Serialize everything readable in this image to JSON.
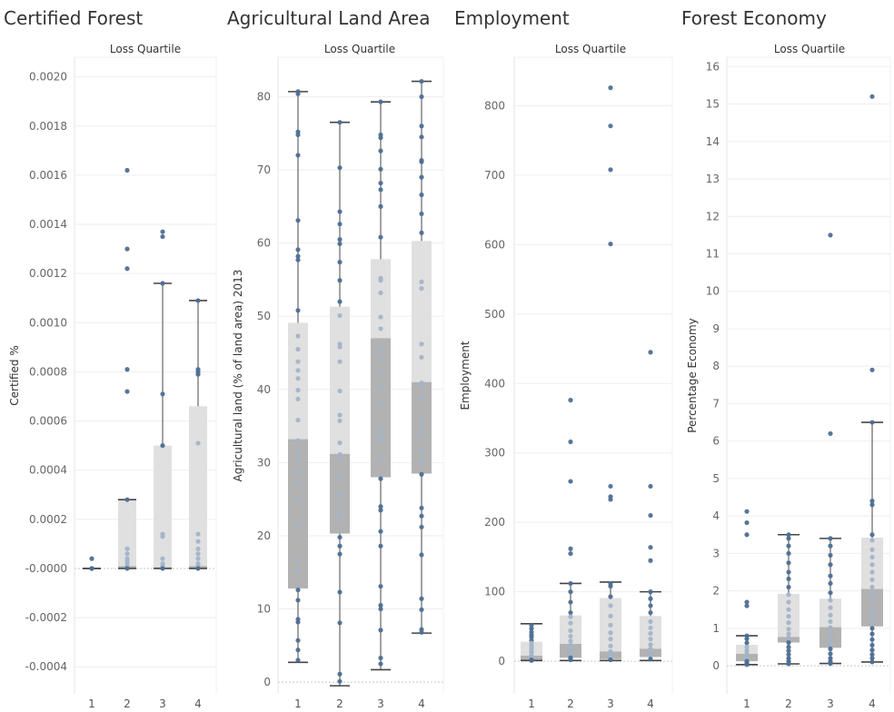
{
  "chart_data": [
    {
      "type": "box",
      "title": "Certified Forest",
      "column_header": "Loss Quartile",
      "ylabel": "Certified %",
      "categories": [
        "1",
        "2",
        "3",
        "4"
      ],
      "ylim": [
        -0.00051,
        0.00208
      ],
      "yticks": [
        "0.0020",
        "0.0018",
        "0.0016",
        "0.0014",
        "0.0012",
        "0.0010",
        "0.0008",
        "0.0006",
        "0.0004",
        "0.0002",
        "-0.0000",
        "-0.0002",
        "-0.0004"
      ],
      "ytick_values": [
        0.002,
        0.0018,
        0.0016,
        0.0014,
        0.0012,
        0.001,
        0.0008,
        0.0006,
        0.0004,
        0.0002,
        0.0,
        -0.0002,
        -0.0004
      ],
      "boxes": [
        {
          "category": "1",
          "min": 0,
          "q1": 0,
          "median": 0,
          "q3": 0,
          "max": 0
        },
        {
          "category": "2",
          "min": 0,
          "q1": 0,
          "median": 1e-05,
          "q3": 0.00028,
          "max": 0.00028
        },
        {
          "category": "3",
          "min": 0,
          "q1": 0,
          "median": 5e-06,
          "q3": 0.0005,
          "max": 0.00116
        },
        {
          "category": "4",
          "min": 0,
          "q1": 0,
          "median": 1e-05,
          "q3": 0.00066,
          "max": 0.00109
        }
      ],
      "points": [
        {
          "category": "1",
          "values": [
            4e-05,
            0,
            0,
            0,
            0
          ]
        },
        {
          "category": "2",
          "values": [
            0.00162,
            0.0013,
            0.00122,
            0.00081,
            0.00072,
            0.00028,
            8e-05,
            6e-05,
            4e-05,
            3e-05,
            2e-05,
            1e-05,
            0
          ]
        },
        {
          "category": "3",
          "values": [
            0.00137,
            0.00135,
            0.00116,
            0.00071,
            0.0005,
            0.00014,
            0.00013,
            4e-05,
            2e-05,
            1e-05,
            0
          ]
        },
        {
          "category": "4",
          "values": [
            0.00109,
            0.00081,
            0.0008,
            0.00079,
            0.00051,
            0.00014,
            0.00011,
            8e-05,
            6e-05,
            4e-05,
            2e-05,
            1e-05,
            0
          ]
        }
      ]
    },
    {
      "type": "box",
      "title": "Agricultural Land Area",
      "column_header": "Loss Quartile",
      "ylabel": "Agricultural land (% of land area) 2013",
      "categories": [
        "1",
        "2",
        "3",
        "4"
      ],
      "ylim": [
        -1.6,
        85.4
      ],
      "yticks": [
        "80",
        "70",
        "60",
        "50",
        "40",
        "30",
        "20",
        "10",
        "0"
      ],
      "ytick_values": [
        80,
        70,
        60,
        50,
        40,
        30,
        20,
        10,
        0
      ],
      "boxes": [
        {
          "category": "1",
          "min": 2.7,
          "q1": 12.8,
          "median": 33.2,
          "q3": 49.1,
          "max": 80.7
        },
        {
          "category": "2",
          "min": -0.5,
          "q1": 20.3,
          "median": 31.2,
          "q3": 51.3,
          "max": 76.5
        },
        {
          "category": "3",
          "min": 1.7,
          "q1": 28.0,
          "median": 47.0,
          "q3": 57.8,
          "max": 79.3
        },
        {
          "category": "4",
          "min": 6.7,
          "q1": 28.5,
          "median": 41.0,
          "q3": 60.3,
          "max": 82.1
        }
      ],
      "points": [
        {
          "category": "1",
          "values": [
            80.7,
            80.4,
            75.2,
            74.8,
            72.0,
            63.1,
            59.1,
            58.2,
            57.7,
            50.8,
            47.3,
            45.5,
            43.8,
            42.6,
            41.5,
            39.9,
            38.7,
            35.8,
            33.0,
            31.5,
            30.1,
            28.6,
            27.2,
            25.2,
            21.3,
            16.7,
            15.2,
            12.6,
            11.2,
            8.6,
            8.2,
            5.7,
            4.4,
            3.0
          ]
        },
        {
          "category": "2",
          "values": [
            76.5,
            70.3,
            64.3,
            62.6,
            60.5,
            59.9,
            57.4,
            54.9,
            52.0,
            50.1,
            46.2,
            45.8,
            43.8,
            39.8,
            36.5,
            35.7,
            32.7,
            31.1,
            30.3,
            28.2,
            25.6,
            24.6,
            23.2,
            22.5,
            19.8,
            18.6,
            17.5,
            12.3,
            8.1,
            1.1,
            0.1
          ]
        },
        {
          "category": "3",
          "values": [
            79.3,
            74.8,
            74.4,
            72.6,
            70.1,
            68.2,
            67.3,
            65.0,
            60.8,
            55.2,
            54.9,
            53.2,
            49.9,
            48.3,
            45.6,
            44.3,
            42.3,
            40.3,
            38.1,
            34.6,
            33.7,
            32.9,
            30.6,
            27.8,
            24.0,
            23.5,
            20.6,
            18.6,
            13.1,
            10.5,
            10.0,
            7.1,
            3.3,
            2.5
          ]
        },
        {
          "category": "4",
          "values": [
            82.1,
            80.0,
            76.0,
            74.5,
            71.3,
            71.1,
            69.0,
            66.6,
            64.0,
            61.4,
            54.7,
            53.8,
            46.2,
            44.4,
            40.9,
            40.5,
            38.7,
            35.9,
            34.6,
            33.6,
            31.6,
            31.4,
            30.0,
            28.4,
            23.8,
            22.7,
            21.2,
            17.4,
            11.4,
            9.9,
            7.2,
            6.8
          ]
        }
      ]
    },
    {
      "type": "box",
      "title": "Employment",
      "column_header": "Loss Quartile",
      "ylabel": "Employment",
      "categories": [
        "1",
        "2",
        "3",
        "4"
      ],
      "ylim": [
        -47,
        870
      ],
      "yticks": [
        "800",
        "700",
        "600",
        "500",
        "400",
        "300",
        "200",
        "100",
        "0"
      ],
      "ytick_values": [
        800,
        700,
        600,
        500,
        400,
        300,
        200,
        100,
        0
      ],
      "boxes": [
        {
          "category": "1",
          "min": 1,
          "q1": 2,
          "median": 8,
          "q3": 28,
          "max": 54
        },
        {
          "category": "2",
          "min": 1,
          "q1": 5,
          "median": 25,
          "q3": 66,
          "max": 112
        },
        {
          "category": "3",
          "min": 1,
          "q1": 3,
          "median": 14,
          "q3": 91,
          "max": 114
        },
        {
          "category": "4",
          "min": 1,
          "q1": 6,
          "median": 18,
          "q3": 65,
          "max": 100
        }
      ],
      "points": [
        {
          "category": "1",
          "values": [
            52,
            47,
            42,
            38,
            35,
            30,
            26,
            22,
            19,
            15,
            12,
            8,
            6,
            4,
            2,
            1
          ]
        },
        {
          "category": "2",
          "values": [
            376,
            316,
            259,
            162,
            155,
            112,
            100,
            85,
            70,
            64,
            55,
            44,
            36,
            29,
            23,
            17,
            12,
            8,
            5,
            2
          ]
        },
        {
          "category": "3",
          "values": [
            826,
            771,
            708,
            601,
            252,
            237,
            233,
            112,
            108,
            93,
            80,
            65,
            52,
            41,
            32,
            22,
            14,
            9,
            5,
            2
          ]
        },
        {
          "category": "4",
          "values": [
            445,
            252,
            210,
            164,
            145,
            100,
            90,
            80,
            70,
            57,
            48,
            40,
            32,
            24,
            18,
            12,
            7,
            3
          ]
        }
      ]
    },
    {
      "type": "box",
      "title": "Forest Economy",
      "column_header": "Loss Quartile",
      "ylabel": "Percentage Economy",
      "categories": [
        "1",
        "2",
        "3",
        "4"
      ],
      "ylim": [
        -0.75,
        16.25
      ],
      "yticks": [
        "16",
        "15",
        "14",
        "13",
        "12",
        "11",
        "10",
        "9",
        "8",
        "7",
        "6",
        "5",
        "4",
        "3",
        "2",
        "1",
        "0"
      ],
      "ytick_values": [
        16,
        15,
        14,
        13,
        12,
        11,
        10,
        9,
        8,
        7,
        6,
        5,
        4,
        3,
        2,
        1,
        0
      ],
      "boxes": [
        {
          "category": "1",
          "min": 0.03,
          "q1": 0.12,
          "median": 0.32,
          "q3": 0.56,
          "max": 0.8
        },
        {
          "category": "2",
          "min": 0.05,
          "q1": 0.62,
          "median": 0.77,
          "q3": 1.92,
          "max": 3.5
        },
        {
          "category": "3",
          "min": 0.06,
          "q1": 0.48,
          "median": 1.03,
          "q3": 1.79,
          "max": 3.4
        },
        {
          "category": "4",
          "min": 0.1,
          "q1": 1.05,
          "median": 2.05,
          "q3": 3.42,
          "max": 6.5
        }
      ],
      "points": [
        {
          "category": "1",
          "values": [
            4.12,
            3.82,
            3.5,
            1.7,
            1.6,
            0.8,
            0.72,
            0.61,
            0.5,
            0.41,
            0.33,
            0.26,
            0.18,
            0.12,
            0.07,
            0.03
          ]
        },
        {
          "category": "2",
          "values": [
            3.5,
            3.4,
            3.2,
            3.0,
            2.75,
            2.5,
            2.32,
            2.1,
            1.9,
            1.7,
            1.5,
            1.32,
            1.15,
            0.98,
            0.85,
            0.75,
            0.62,
            0.5,
            0.4,
            0.3,
            0.2,
            0.12,
            0.05
          ]
        },
        {
          "category": "3",
          "values": [
            11.5,
            6.2,
            3.4,
            3.2,
            2.95,
            2.7,
            2.4,
            2.2,
            1.95,
            1.75,
            1.55,
            1.35,
            1.18,
            1.02,
            0.86,
            0.7,
            0.55,
            0.45,
            0.32,
            0.2,
            0.12,
            0.06
          ]
        },
        {
          "category": "4",
          "values": [
            15.2,
            7.9,
            6.5,
            4.4,
            4.3,
            3.5,
            3.35,
            3.1,
            2.9,
            2.7,
            2.5,
            2.3,
            2.1,
            1.9,
            1.7,
            1.5,
            1.3,
            1.15,
            1.0,
            0.85,
            0.7,
            0.55,
            0.42,
            0.3,
            0.2,
            0.1
          ]
        }
      ]
    }
  ],
  "colors": {
    "point": "#4e6f94",
    "point_light": "#a3b4c8",
    "box_upper": "#e0e0e0",
    "box_lower": "#b2b2b2",
    "whisker": "#444444",
    "gridline": "#eeeeee",
    "zero_line": "#c8c8c8"
  }
}
